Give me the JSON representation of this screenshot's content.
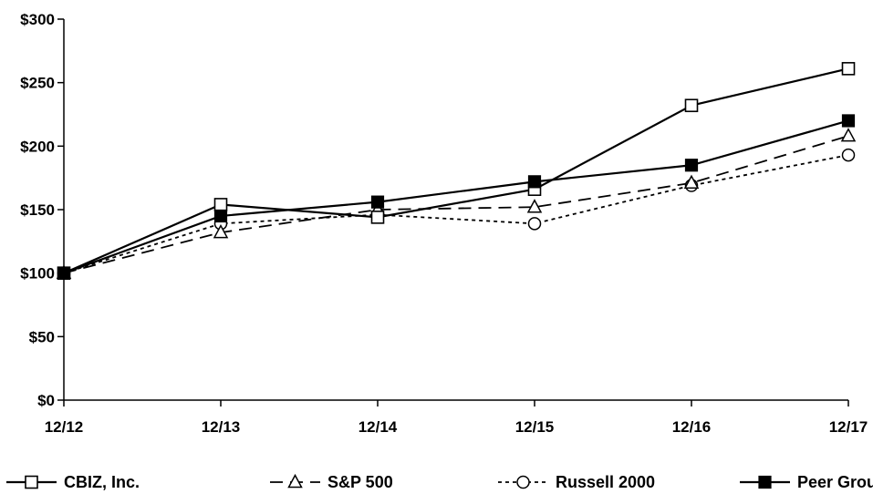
{
  "chart_data": {
    "type": "line",
    "title": "",
    "xlabel": "",
    "ylabel": "",
    "categories": [
      "12/12",
      "12/13",
      "12/14",
      "12/15",
      "12/16",
      "12/17"
    ],
    "y_ticks": [
      "$0",
      "$50",
      "$100",
      "$150",
      "$200",
      "$250",
      "$300"
    ],
    "ylim": [
      0,
      300
    ],
    "grid": false,
    "legend_position": "bottom",
    "series": [
      {
        "name": "CBIZ, Inc.",
        "values": [
          100,
          154,
          144,
          166,
          232,
          261
        ],
        "marker": "open-square",
        "dash": "solid"
      },
      {
        "name": "S&P 500",
        "values": [
          100,
          132,
          150,
          152,
          171,
          208
        ],
        "marker": "open-triangle",
        "dash": "dashed"
      },
      {
        "name": "Russell 2000",
        "values": [
          100,
          139,
          146,
          139,
          169,
          193
        ],
        "marker": "open-circle",
        "dash": "dotted"
      },
      {
        "name": "Peer Group",
        "values": [
          100,
          145,
          156,
          172,
          185,
          220
        ],
        "marker": "filled-square",
        "dash": "solid"
      }
    ]
  }
}
